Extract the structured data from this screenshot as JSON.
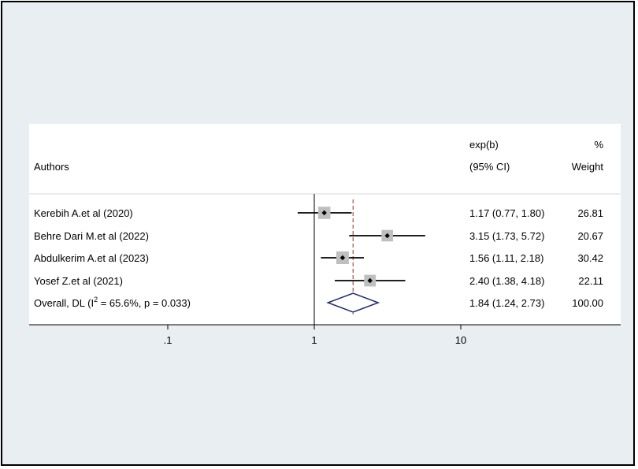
{
  "chart_data": {
    "type": "forest",
    "headers": {
      "authors": "Authors",
      "effect_line1": "exp(b)",
      "effect_line2": "(95% CI)",
      "weight_line1": "%",
      "weight_line2": "Weight"
    },
    "studies": [
      {
        "label": "Kerebih A.et al (2020)",
        "estimate": 1.17,
        "lower": 0.77,
        "upper": 1.8,
        "ci_text": "1.17 (0.77, 1.80)",
        "weight": "26.81"
      },
      {
        "label": "Behre Dari M.et al (2022)",
        "estimate": 3.15,
        "lower": 1.73,
        "upper": 5.72,
        "ci_text": "3.15 (1.73, 5.72)",
        "weight": "20.67"
      },
      {
        "label": "Abdulkerim A.et al (2023)",
        "estimate": 1.56,
        "lower": 1.11,
        "upper": 2.18,
        "ci_text": "1.56 (1.11, 2.18)",
        "weight": "30.42"
      },
      {
        "label": "Yosef Z.et al (2021)",
        "estimate": 2.4,
        "lower": 1.38,
        "upper": 4.18,
        "ci_text": "2.40 (1.38, 4.18)",
        "weight": "22.11"
      }
    ],
    "overall": {
      "label_prefix": "Overall, DL (I",
      "label_sup": "2",
      "label_suffix": " = 65.6%, p = 0.033)",
      "estimate": 1.84,
      "lower": 1.24,
      "upper": 2.73,
      "ci_text": "1.84 (1.24, 2.73)",
      "weight": "100.00"
    },
    "x_scale": "log",
    "x_ticks": [
      {
        "value": 0.1,
        "label": ".1"
      },
      {
        "value": 1,
        "label": "1"
      },
      {
        "value": 10,
        "label": "10"
      }
    ],
    "null_value": 1,
    "colors": {
      "outer_background": "#e9eef2",
      "plot_background": "#ffffff",
      "ci_line": "#000000",
      "weight_box": "#bfbfbf",
      "diamond": "#1f2a6b",
      "overall_line": "#a0504a"
    }
  }
}
